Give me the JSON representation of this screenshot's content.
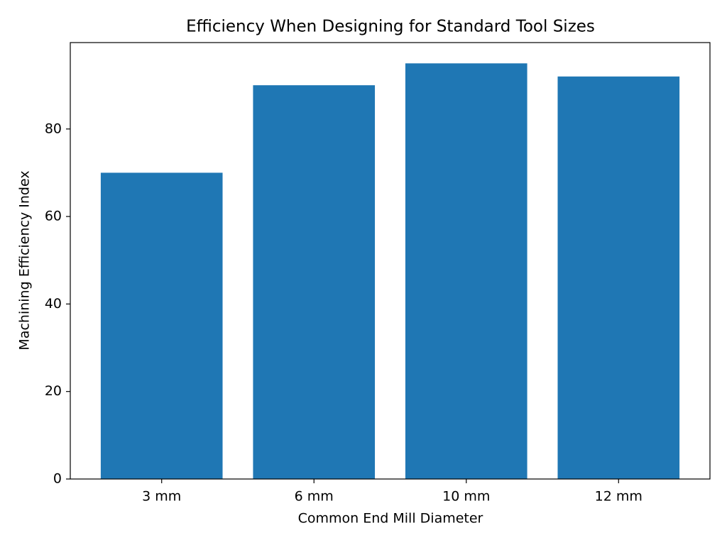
{
  "chart_data": {
    "type": "bar",
    "title": "Efficiency When Designing for Standard Tool Sizes",
    "xlabel": "Common End Mill Diameter",
    "ylabel": "Machining Efficiency Index",
    "categories": [
      "3 mm",
      "6 mm",
      "10 mm",
      "12 mm"
    ],
    "values": [
      70,
      90,
      95,
      92
    ],
    "color": "#1f77b4",
    "ylim": [
      0,
      99.75
    ],
    "yticks": [
      0,
      20,
      40,
      60,
      80
    ],
    "grid": false
  }
}
